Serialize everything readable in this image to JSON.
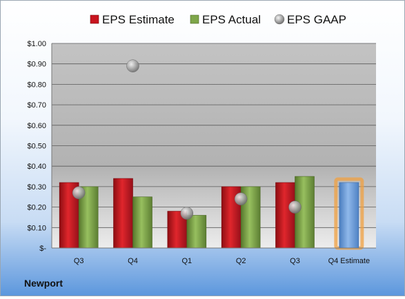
{
  "company": "Newport",
  "colors": {
    "estimate": "#c8141e",
    "actual": "#7ea64a",
    "gaap": "#a6a6a6",
    "estimate_future": "#6f9fd9",
    "highlight": "#f0a040"
  },
  "chart_data": {
    "type": "bar",
    "title": "",
    "xlabel": "",
    "ylabel": "",
    "categories": [
      "Q3",
      "Q4",
      "Q1",
      "Q2",
      "Q3",
      "Q4 Estimate"
    ],
    "ylim": [
      0,
      1.0
    ],
    "yticks": [
      0,
      0.1,
      0.2,
      0.3,
      0.4,
      0.5,
      0.6,
      0.7,
      0.8,
      0.9,
      1.0
    ],
    "ytick_labels": [
      "$-",
      "$0.10",
      "$0.20",
      "$0.30",
      "$0.40",
      "$0.50",
      "$0.60",
      "$0.70",
      "$0.80",
      "$0.90",
      "$1.00"
    ],
    "grid": true,
    "legend_position": "top",
    "series": [
      {
        "name": "EPS Estimate",
        "kind": "bar",
        "values": [
          0.32,
          0.34,
          0.18,
          0.3,
          0.32,
          0.32
        ]
      },
      {
        "name": "EPS Actual",
        "kind": "bar",
        "values": [
          0.3,
          0.25,
          0.16,
          0.3,
          0.35,
          null
        ]
      },
      {
        "name": "EPS GAAP",
        "kind": "marker",
        "values": [
          0.27,
          0.89,
          0.17,
          0.24,
          0.2,
          null
        ]
      }
    ]
  }
}
